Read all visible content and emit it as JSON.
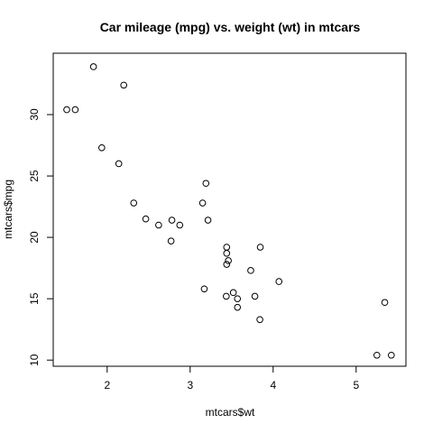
{
  "chart_data": {
    "type": "scatter",
    "title": "Car mileage (mpg) vs. weight (wt) in mtcars",
    "xlabel": "mtcars$wt",
    "ylabel": "mtcars$mpg",
    "xlim": [
      1.35,
      5.6
    ],
    "ylim": [
      9.5,
      35.0
    ],
    "xticks": [
      2,
      3,
      4,
      5
    ],
    "yticks": [
      10,
      15,
      20,
      25,
      30
    ],
    "xtick_labels": [
      "2",
      "3",
      "4",
      "5"
    ],
    "ytick_labels": [
      "10",
      "15",
      "20",
      "25",
      "30"
    ],
    "grid": false,
    "marker": "open-circle",
    "points": [
      {
        "x": 2.62,
        "y": 21.0
      },
      {
        "x": 2.875,
        "y": 21.0
      },
      {
        "x": 2.32,
        "y": 22.8
      },
      {
        "x": 3.215,
        "y": 21.4
      },
      {
        "x": 3.44,
        "y": 18.7
      },
      {
        "x": 3.46,
        "y": 18.1
      },
      {
        "x": 3.57,
        "y": 14.3
      },
      {
        "x": 3.19,
        "y": 24.4
      },
      {
        "x": 3.15,
        "y": 22.8
      },
      {
        "x": 3.44,
        "y": 19.2
      },
      {
        "x": 3.44,
        "y": 17.8
      },
      {
        "x": 4.07,
        "y": 16.4
      },
      {
        "x": 3.73,
        "y": 17.3
      },
      {
        "x": 3.78,
        "y": 15.2
      },
      {
        "x": 5.25,
        "y": 10.4
      },
      {
        "x": 5.424,
        "y": 10.4
      },
      {
        "x": 5.345,
        "y": 14.7
      },
      {
        "x": 2.2,
        "y": 32.4
      },
      {
        "x": 1.615,
        "y": 30.4
      },
      {
        "x": 1.835,
        "y": 33.9
      },
      {
        "x": 2.465,
        "y": 21.5
      },
      {
        "x": 3.52,
        "y": 15.5
      },
      {
        "x": 3.435,
        "y": 15.2
      },
      {
        "x": 3.84,
        "y": 13.3
      },
      {
        "x": 3.845,
        "y": 19.2
      },
      {
        "x": 1.935,
        "y": 27.3
      },
      {
        "x": 2.14,
        "y": 26.0
      },
      {
        "x": 1.513,
        "y": 30.4
      },
      {
        "x": 3.17,
        "y": 15.8
      },
      {
        "x": 2.77,
        "y": 19.7
      },
      {
        "x": 3.57,
        "y": 15.0
      },
      {
        "x": 2.78,
        "y": 21.4
      }
    ]
  }
}
